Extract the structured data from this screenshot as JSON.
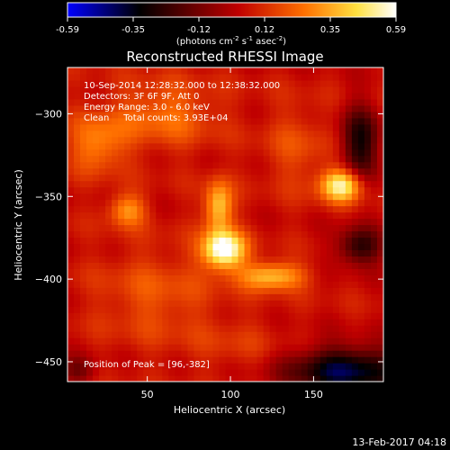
{
  "chart_data": {
    "type": "heatmap",
    "title": "Reconstructed RHESSI Image",
    "xlabel": "Heliocentric X (arcsec)",
    "ylabel": "Heliocentric Y (arcsec)",
    "xlim": [
      2,
      192
    ],
    "ylim": [
      -462,
      -272
    ],
    "x_ticks": [
      50,
      100,
      150
    ],
    "y_ticks": [
      -300,
      -350,
      -400,
      -450
    ],
    "annotations": [
      "10-Sep-2014 12:28:32.000 to 12:38:32.000",
      "Detectors: 3F 6F 9F, Att 0",
      "Energy Range: 3.0 - 6.0 keV",
      "Clean     Total counts: 3.93E+04"
    ],
    "peak_label": "Position of Peak = [96,-382]",
    "peak": [
      96,
      -382
    ],
    "colorbar": {
      "min": -0.59,
      "max": 0.59,
      "ticks": [
        "-0.59",
        "-0.35",
        "-0.12",
        "0.12",
        "0.35",
        "0.59"
      ],
      "label": "(photons cm",
      "label_exp1": "-2",
      "label_mid": " s",
      "label_exp2": "-1",
      "label_mid2": " asec",
      "label_exp3": "-2",
      "label_end": ")",
      "colors": [
        "#0000ff",
        "#000000",
        "#c00000",
        "#ff7000",
        "#ffe040",
        "#ffffff"
      ]
    },
    "sources": [
      {
        "x": 96,
        "y": -382,
        "sx": 9,
        "sy": 8,
        "amp": 0.59
      },
      {
        "x": 93,
        "y": -356,
        "sx": 6,
        "sy": 11,
        "amp": 0.38
      },
      {
        "x": 125,
        "y": -398,
        "sx": 14,
        "sy": 6,
        "amp": 0.36
      },
      {
        "x": 167,
        "y": -343,
        "sx": 9,
        "sy": 7,
        "amp": 0.5
      },
      {
        "x": 38,
        "y": -358,
        "sx": 8,
        "sy": 7,
        "amp": 0.27
      },
      {
        "x": 20,
        "y": -318,
        "sx": 12,
        "sy": 12,
        "amp": 0.24
      },
      {
        "x": 60,
        "y": -300,
        "sx": 22,
        "sy": 14,
        "amp": 0.2
      },
      {
        "x": 55,
        "y": -410,
        "sx": 25,
        "sy": 20,
        "amp": 0.14
      },
      {
        "x": 105,
        "y": -440,
        "sx": 20,
        "sy": 12,
        "amp": 0.07
      },
      {
        "x": 140,
        "y": -320,
        "sx": 14,
        "sy": 18,
        "amp": 0.12
      },
      {
        "x": 178,
        "y": -318,
        "sx": 8,
        "sy": 16,
        "amp": -0.35
      },
      {
        "x": 178,
        "y": -380,
        "sx": 10,
        "sy": 8,
        "amp": -0.32
      },
      {
        "x": 170,
        "y": -455,
        "sx": 25,
        "sy": 10,
        "amp": -0.45
      },
      {
        "x": 8,
        "y": -455,
        "sx": 8,
        "sy": 6,
        "amp": -0.18
      }
    ],
    "baseline": 0.05
  },
  "timestamp": "13-Feb-2017 04:18"
}
